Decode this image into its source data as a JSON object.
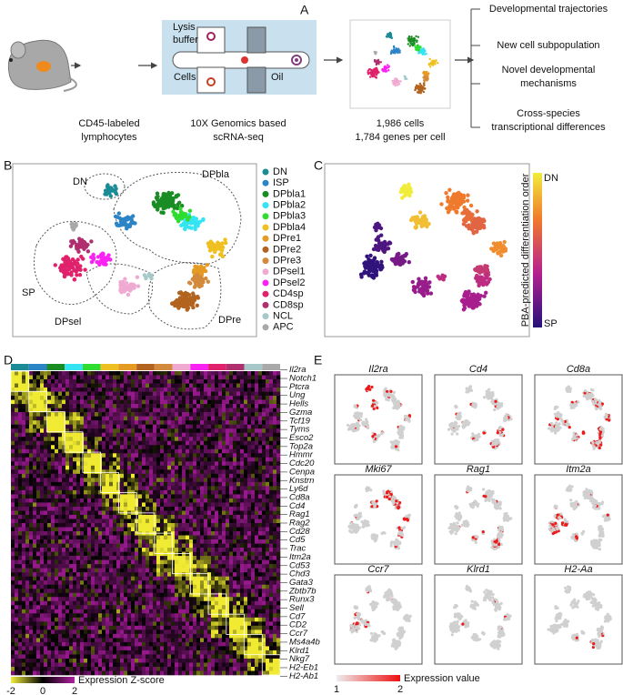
{
  "panel_labels": [
    "A",
    "B",
    "C",
    "D",
    "E"
  ],
  "workflow": {
    "chip": {
      "lysis_buffer": [
        "Lysis",
        "buffer"
      ],
      "cells": "Cells",
      "oil": "Oil"
    },
    "steps": [
      [
        "CD45-labeled",
        "lymphocytes"
      ],
      [
        "10X Genomics based",
        "scRNA-seq"
      ],
      [
        "1,986 cells",
        "1,784 genes per cell"
      ]
    ],
    "outcomes": [
      [
        "Developmental trajectories"
      ],
      [
        "New cell subpopulation"
      ],
      [
        "Novel developmental",
        "mechanisms"
      ],
      [
        "Cross-species",
        "transcriptional differences"
      ]
    ]
  },
  "clusters": {
    "regions": [
      "DN",
      "DPbla",
      "SP",
      "DPsel",
      "DPre"
    ],
    "legend": [
      {
        "name": "DN",
        "color": "#1b8b96"
      },
      {
        "name": "ISP",
        "color": "#2b84c6"
      },
      {
        "name": "DPbla1",
        "color": "#1a8c24"
      },
      {
        "name": "DPbla2",
        "color": "#34e4f2"
      },
      {
        "name": "DPbla3",
        "color": "#2fdc2f"
      },
      {
        "name": "DPbla4",
        "color": "#efc021"
      },
      {
        "name": "DPre1",
        "color": "#e59a24"
      },
      {
        "name": "DPre2",
        "color": "#b2641f"
      },
      {
        "name": "DPre3",
        "color": "#d38a3c"
      },
      {
        "name": "DPsel1",
        "color": "#f0aad2"
      },
      {
        "name": "DPsel2",
        "color": "#fb22f4"
      },
      {
        "name": "CD4sp",
        "color": "#e0216b"
      },
      {
        "name": "CD8sp",
        "color": "#b02f6f"
      },
      {
        "name": "NCL",
        "color": "#a6c8c8"
      },
      {
        "name": "APC",
        "color": "#a9a9a9"
      }
    ]
  },
  "pseudotime": {
    "axis_label": "PBA-predicted differentiation order",
    "top": "DN",
    "bottom": "SP"
  },
  "heatmap": {
    "genes": [
      "Il2ra",
      "Notch1",
      "Ptcra",
      "Ung",
      "Hells",
      "Gzma",
      "Tcf19",
      "Tyms",
      "Esco2",
      "Top2a",
      "Hmmr",
      "Cdc20",
      "Cenpa",
      "Knstrn",
      "Ly6d",
      "Cd8a",
      "Cd4",
      "Rag1",
      "Rag2",
      "Cd28",
      "Cd5",
      "Trac",
      "Itm2a",
      "Cd53",
      "Chd3",
      "Gata3",
      "Zbtb7b",
      "Runx3",
      "Sell",
      "Cd7",
      "CD2",
      "Ccr7",
      "Ms4a4b",
      "Klrd1",
      "Nkg7",
      "H2-Eb1",
      "H2-Ab1"
    ],
    "colorbar": {
      "label": "Expression Z-score",
      "lim": [
        -2,
        2
      ],
      "ticks": [
        -2,
        0,
        2
      ]
    }
  },
  "feature_plots": {
    "genes": [
      "Il2ra",
      "Cd4",
      "Cd8a",
      "Mki67",
      "Rag1",
      "Itm2a",
      "Ccr7",
      "Klrd1",
      "H2-Aa"
    ],
    "colorbar": {
      "label": "Expression value",
      "lim": [
        1,
        2
      ],
      "ticks": [
        1,
        2
      ]
    }
  }
}
